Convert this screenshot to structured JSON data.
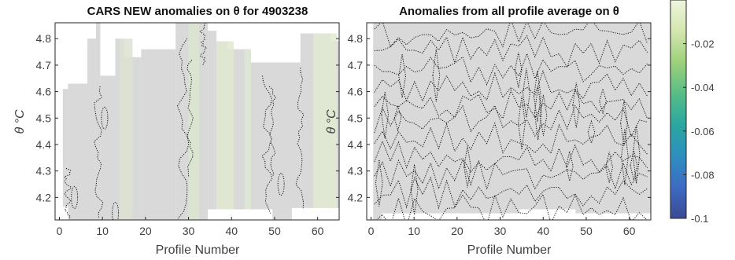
{
  "figure": {
    "colors": {
      "background": "#ffffff",
      "field": "#d9d9d9",
      "contour": "#111111",
      "axis": "#262626",
      "label": "#404040"
    }
  },
  "chart_data": [
    {
      "type": "heatmap",
      "title": "CARS NEW anomalies on θ for 4903238",
      "xlabel": "Profile Number",
      "ylabel": "θ °C",
      "xlim": [
        -1,
        65
      ],
      "ylim": [
        4.115,
        4.86
      ],
      "xticks": [
        0,
        10,
        20,
        30,
        40,
        50,
        60
      ],
      "yticks": [
        4.2,
        4.3,
        4.4,
        4.5,
        4.6,
        4.7,
        4.8
      ],
      "grid": false,
      "field_value_typical": 0.0,
      "coverage_columns": [
        {
          "x0": 0.8,
          "x1": 2.0,
          "ytop": 4.61
        },
        {
          "x0": 2.0,
          "x1": 6.5,
          "ytop": 4.63
        },
        {
          "x0": 6.5,
          "x1": 8.5,
          "ytop": 4.8
        },
        {
          "x0": 8.5,
          "x1": 9.5,
          "ytop": 4.86
        },
        {
          "x0": 9.5,
          "x1": 13.0,
          "ytop": 4.66
        },
        {
          "x0": 13.0,
          "x1": 15.0,
          "ytop": 4.8
        },
        {
          "x0": 15.0,
          "x1": 19.0,
          "ytop": 4.73
        },
        {
          "x0": 19.0,
          "x1": 27.0,
          "ytop": 4.76
        },
        {
          "x0": 27.0,
          "x1": 34.5,
          "ytop": 4.86
        },
        {
          "x0": 34.5,
          "x1": 36.5,
          "ytop": 4.83
        },
        {
          "x0": 36.5,
          "x1": 39.0,
          "ytop": 4.79
        },
        {
          "x0": 39.0,
          "x1": 44.5,
          "ytop": 4.76
        },
        {
          "x0": 44.5,
          "x1": 56.0,
          "ytop": 4.71
        },
        {
          "x0": 56.0,
          "x1": 58.5,
          "ytop": 4.82
        },
        {
          "x0": 58.5,
          "x1": 63.0,
          "ytop": 4.82
        },
        {
          "x0": 63.0,
          "x1": 65.0,
          "ytop": 4.79
        }
      ],
      "missing_bottom": [
        {
          "x0": 0.8,
          "x1": 2.0,
          "y1": 4.165
        },
        {
          "x0": 34.5,
          "x1": 49.5,
          "y1": 4.155
        },
        {
          "x0": 54.0,
          "x1": 65.0,
          "y1": 4.16
        }
      ],
      "tint_bands": [
        {
          "x0": 14.0,
          "x1": 17.0,
          "color": "#dde2d2"
        },
        {
          "x0": 30.0,
          "x1": 32.5,
          "color": "#dbe4cf"
        },
        {
          "x0": 36.5,
          "x1": 40.5,
          "color": "#dfe9d0"
        },
        {
          "x0": 43.0,
          "x1": 44.5,
          "color": "#dde6d3"
        },
        {
          "x0": 59.0,
          "x1": 64.5,
          "color": "#e0ead1"
        }
      ]
    },
    {
      "type": "heatmap",
      "title": "Anomalies from all profile average on θ",
      "xlabel": "Profile Number",
      "ylabel": "θ °C",
      "xlim": [
        -1,
        65
      ],
      "ylim": [
        4.115,
        4.86
      ],
      "xticks": [
        0,
        10,
        20,
        30,
        40,
        50,
        60
      ],
      "yticks": [
        4.2,
        4.3,
        4.4,
        4.5,
        4.6,
        4.7,
        4.8
      ],
      "grid": false,
      "field_value_typical": 0.0,
      "coverage_columns": [
        {
          "x0": 0.5,
          "x1": 65.0,
          "ytop": 4.86
        }
      ],
      "missing_bottom": [
        {
          "x0": 2.5,
          "x1": 34.5,
          "y1": 4.14
        },
        {
          "x0": 34.5,
          "x1": 47.5,
          "y1": 4.155
        },
        {
          "x0": 47.5,
          "x1": 65.0,
          "y1": 4.14
        }
      ],
      "tint_bands": []
    }
  ],
  "colorbar": {
    "ticks": [
      -0.02,
      -0.04,
      -0.06,
      -0.08,
      -0.1
    ],
    "tick_labels": [
      "-0.02",
      "-0.04",
      "-0.06",
      "-0.08",
      "-0.1"
    ],
    "range": [
      -0.1,
      0.0
    ],
    "colormap": [
      "#3b4992",
      "#3d6bc3",
      "#2e8fbf",
      "#2aa7a0",
      "#57bd86",
      "#9cd17a",
      "#d4e6b0",
      "#eef6dd"
    ]
  }
}
